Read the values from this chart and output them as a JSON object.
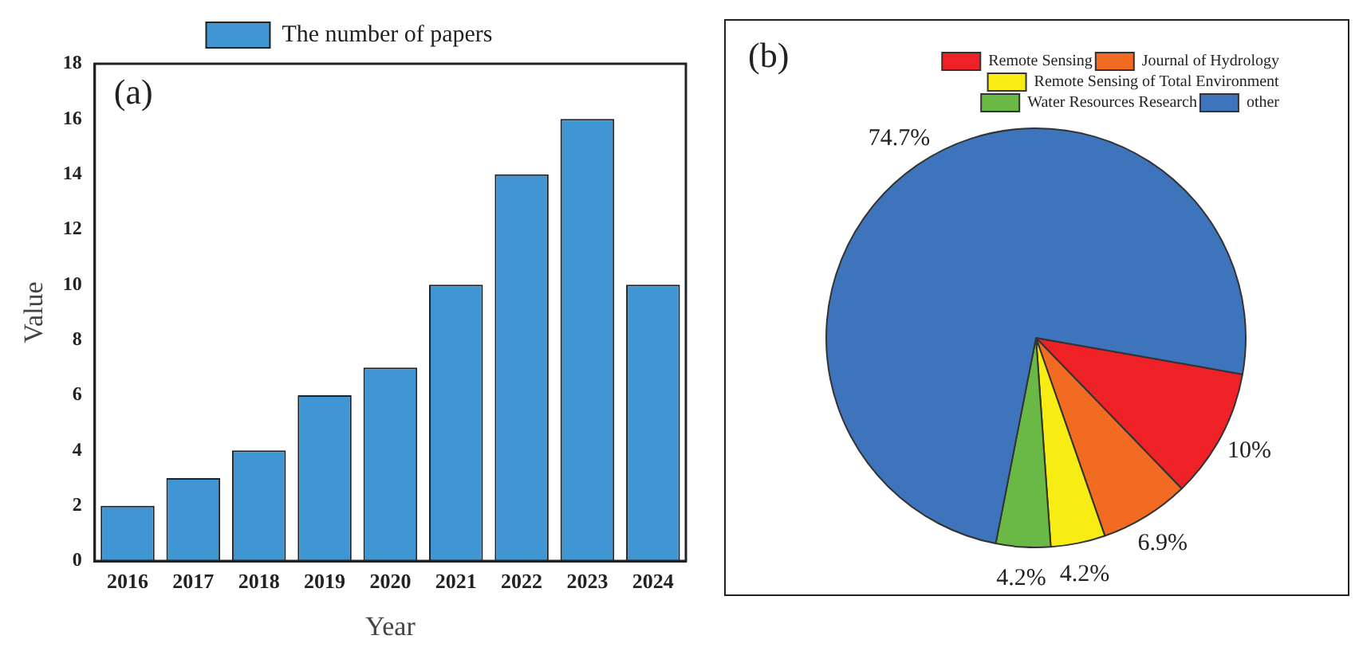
{
  "chart_data": [
    {
      "type": "bar",
      "annotations": [
        "(a)"
      ],
      "xlabel": "Year",
      "ylabel": "Value",
      "categories": [
        "2016",
        "2017",
        "2018",
        "2019",
        "2020",
        "2021",
        "2022",
        "2023",
        "2024"
      ],
      "series": [
        {
          "name": "The number of papers",
          "color": "#4095d3",
          "values": [
            2,
            3,
            4,
            6,
            7,
            10,
            14,
            16,
            10
          ]
        }
      ],
      "ylim": [
        0,
        18
      ],
      "yticks": [
        0,
        2,
        4,
        6,
        8,
        10,
        12,
        14,
        16,
        18
      ],
      "legend": "top",
      "grid": false
    },
    {
      "type": "pie",
      "annotations": [
        "(b)"
      ],
      "categories": [
        "Remote Sensing",
        "Journal of Hydrology",
        "Remote Sensing of Total Environment",
        "Water Resources Research",
        "other"
      ],
      "values": [
        10,
        6.9,
        4.2,
        4.2,
        74.7
      ],
      "colors": [
        "#ee2226",
        "#f26b23",
        "#f7ec13",
        "#6ab845",
        "#3e74bb"
      ],
      "value_labels": [
        "10%",
        "6.9%",
        "4.2%",
        "4.2%",
        "74.7%"
      ],
      "legend": "top right"
    }
  ]
}
